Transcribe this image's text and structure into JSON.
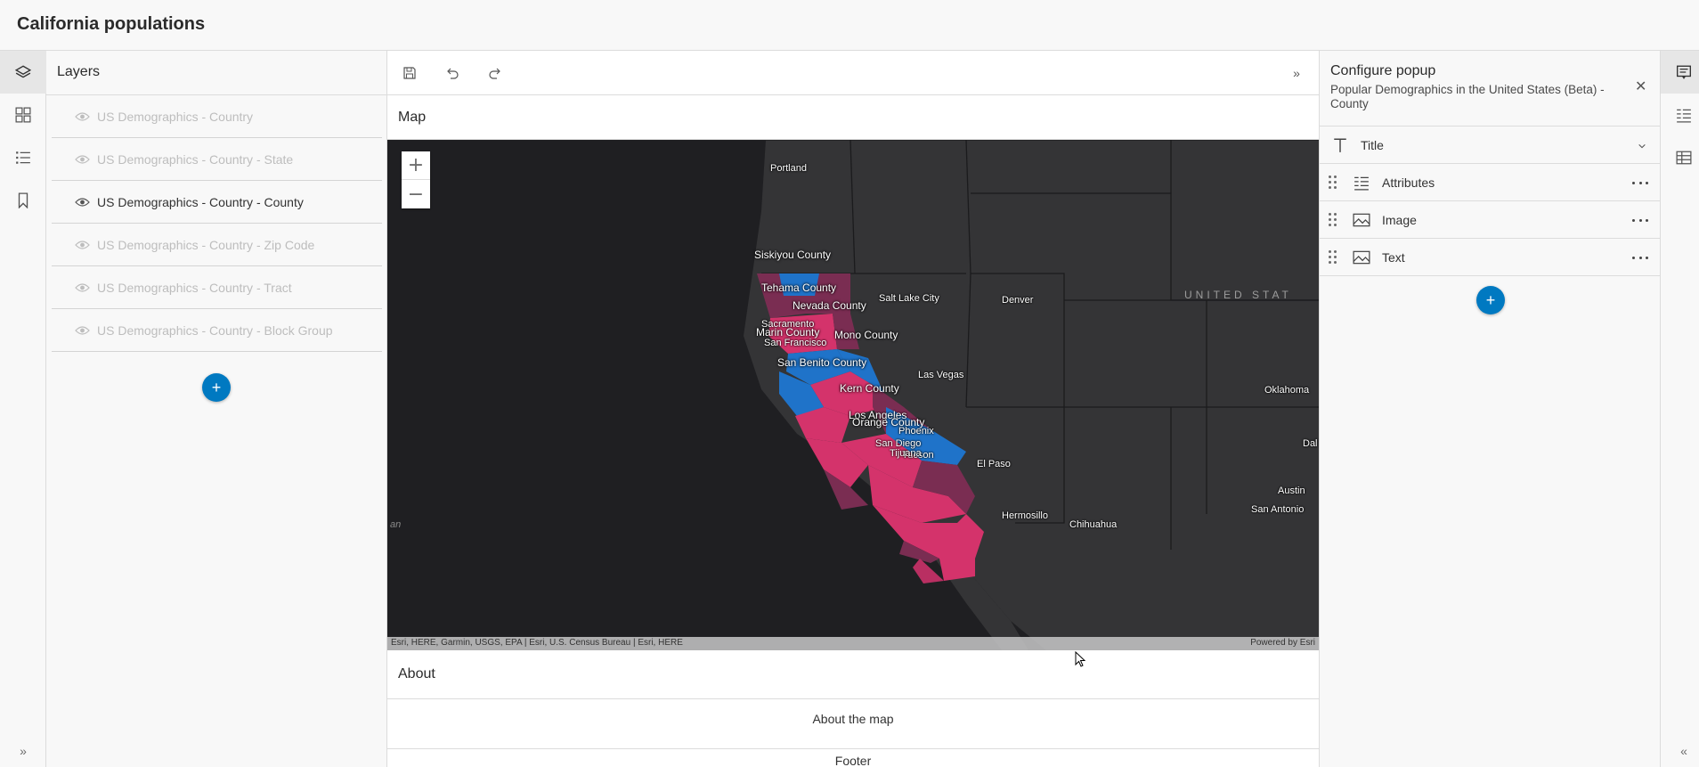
{
  "app": {
    "title": "California populations"
  },
  "left_actions": [
    "layers-icon",
    "basemap-gallery-icon",
    "legend-list-icon",
    "bookmark-icon"
  ],
  "right_actions": [
    "popup-config-icon",
    "attributes-list-icon",
    "table-icon"
  ],
  "layers_panel": {
    "heading": "Layers",
    "items": [
      {
        "label": "US Demographics - Country",
        "visible": false
      },
      {
        "label": "US Demographics - Country - State",
        "visible": false
      },
      {
        "label": "US Demographics - Country - County",
        "visible": true
      },
      {
        "label": "US Demographics - Country - Zip Code",
        "visible": false
      },
      {
        "label": "US Demographics - Country - Tract",
        "visible": false
      },
      {
        "label": "US Demographics - Country - Block Group",
        "visible": false
      }
    ],
    "add_label": "+"
  },
  "toolbar": {
    "collapse_glyph": "»"
  },
  "map": {
    "heading": "Map",
    "zoom_in": "+",
    "zoom_out": "−",
    "attribution": "Esri, HERE, Garmin, USGS, EPA | Esri, U.S. Census Bureau | Esri, HERE",
    "powered_by": "Powered by Esri",
    "country_label": "UNITED STAT",
    "partial_label": "an",
    "cities": [
      "Portland",
      "Salt Lake City",
      "Denver",
      "Las Vegas",
      "Phoenix",
      "Tucson",
      "El Paso",
      "Oklahoma",
      "Dal",
      "Austin",
      "San Antonio",
      "Hermosillo",
      "Chihuahua",
      "Sacramento",
      "San Francisco",
      "Los Angeles",
      "San Diego",
      "Tijuana"
    ],
    "counties": [
      "Siskiyou County",
      "Tehama County",
      "Nevada County",
      "Marin County",
      "Mono County",
      "San Benito County",
      "Kern County",
      "Orange County"
    ],
    "colors": {
      "high": "#d4336b",
      "low": "#1f73c9",
      "mid": "#7a2d52"
    }
  },
  "about": {
    "heading": "About",
    "link": "About the map"
  },
  "footer": {
    "label": "Footer"
  },
  "popup_panel": {
    "title": "Configure popup",
    "subtitle": "Popular Demographics in the United States (Beta) - County",
    "title_row": "Title",
    "rows": [
      "Attributes",
      "Image",
      "Text"
    ],
    "add_label": "+"
  },
  "collapse": {
    "left": "»",
    "right": "«"
  }
}
